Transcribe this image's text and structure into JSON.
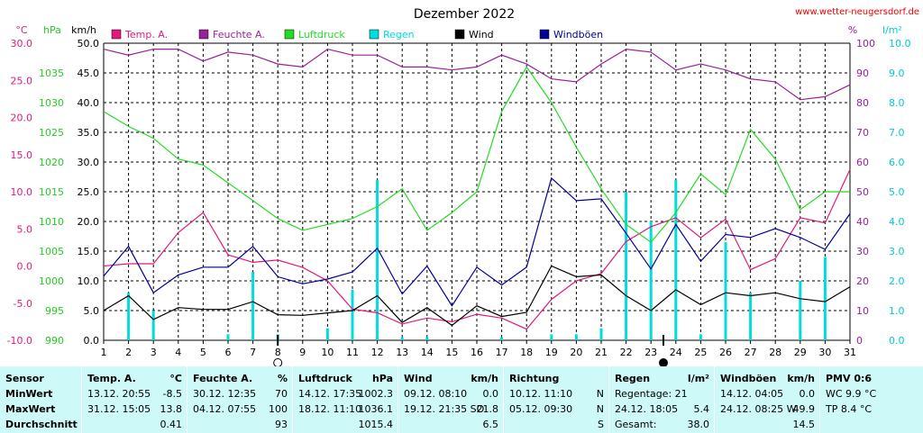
{
  "header": {
    "title": "Dezember 2022",
    "site": "www.wetter-neugersdorf.de"
  },
  "chart_data": {
    "type": "line",
    "title": "Dezember 2022",
    "x": [
      1,
      2,
      3,
      4,
      5,
      6,
      7,
      8,
      9,
      10,
      11,
      12,
      13,
      14,
      15,
      16,
      17,
      18,
      19,
      20,
      21,
      22,
      23,
      24,
      25,
      26,
      27,
      28,
      29,
      30,
      31
    ],
    "xlim": [
      1,
      31
    ],
    "axes": {
      "temp": {
        "unit": "°C",
        "range": [
          -10,
          30
        ],
        "ticks": [
          "-10.0",
          "-5.0",
          "0.0",
          "5.0",
          "10.0",
          "15.0",
          "20.0",
          "25.0",
          "30.0"
        ]
      },
      "pressure": {
        "unit": "hPa",
        "range": [
          990,
          1040
        ],
        "ticks": [
          "990",
          "995",
          "1000",
          "1005",
          "1010",
          "1015",
          "1020",
          "1025",
          "1030",
          "1035"
        ]
      },
      "wind": {
        "unit": "km/h",
        "range": [
          0,
          50
        ],
        "ticks": [
          "0.0",
          "5.0",
          "10.0",
          "15.0",
          "20.0",
          "25.0",
          "30.0",
          "35.0",
          "40.0",
          "45.0",
          "50.0"
        ]
      },
      "humidity": {
        "unit": "%",
        "range": [
          0,
          100
        ],
        "ticks": [
          "0",
          "10",
          "20",
          "30",
          "40",
          "50",
          "60",
          "70",
          "80",
          "90",
          "100"
        ]
      },
      "rain": {
        "unit": "l/m²",
        "range": [
          0,
          10
        ],
        "ticks": [
          "0.0",
          "1.0",
          "2.0",
          "3.0",
          "4.0",
          "5.0",
          "6.0",
          "7.0",
          "8.0",
          "9.0",
          "10.0"
        ]
      }
    },
    "grid": true,
    "legend_position": "top",
    "moon_phases": [
      {
        "day": 8,
        "phase": "full"
      },
      {
        "day": 23.5,
        "phase": "new"
      }
    ],
    "series": [
      {
        "name": "Temp. A.",
        "axis": "temp",
        "color": "#e0197d",
        "kind": "line",
        "values": [
          0.0,
          0.3,
          0.3,
          4.5,
          7.2,
          1.5,
          0.5,
          0.8,
          -0.2,
          -2.0,
          -5.8,
          -6.3,
          -7.8,
          -7.0,
          -7.5,
          -6.5,
          -7.0,
          -8.5,
          -4.5,
          -2.0,
          -1.0,
          3.3,
          5.3,
          6.5,
          3.8,
          6.3,
          -0.5,
          1.0,
          6.5,
          5.8,
          13.0
        ]
      },
      {
        "name": "Feuchte A.",
        "axis": "humidity",
        "color": "#9b1f9b",
        "kind": "line",
        "values": [
          98,
          96,
          98,
          98,
          94,
          97,
          96,
          93,
          92,
          98,
          96,
          96,
          92,
          92,
          91,
          92,
          96,
          93,
          88,
          87,
          93,
          98,
          97,
          91,
          93,
          91,
          88,
          87,
          81,
          82,
          86
        ]
      },
      {
        "name": "Luftdruck",
        "axis": "pressure",
        "color": "#22dd22",
        "kind": "line",
        "values": [
          1028.5,
          1026,
          1024,
          1020.5,
          1019.5,
          1016.5,
          1013.5,
          1010.5,
          1008.5,
          1009.5,
          1010.5,
          1012.5,
          1015.5,
          1008.5,
          1011.5,
          1015,
          1028.5,
          1036,
          1030,
          1022.5,
          1015.5,
          1009.5,
          1006.5,
          1011.5,
          1018,
          1014.5,
          1025.5,
          1020.5,
          1012,
          1015,
          1015
        ]
      },
      {
        "name": "Regen",
        "axis": "rain",
        "color": "#00dddd",
        "kind": "bar",
        "values": [
          0,
          1.6,
          1.0,
          0,
          0,
          0.2,
          2.3,
          0.2,
          0,
          0.4,
          1.7,
          5.4,
          0.1,
          0.1,
          0,
          0,
          0.1,
          0,
          0.2,
          0.2,
          0.4,
          5.0,
          4.0,
          5.4,
          0.2,
          3.3,
          1.6,
          0,
          2.0,
          2.8,
          0
        ]
      },
      {
        "name": "Wind",
        "axis": "wind",
        "color": "#000000",
        "kind": "line",
        "values": [
          5.0,
          7.5,
          3.5,
          5.5,
          5.2,
          5.2,
          6.5,
          4.3,
          4.2,
          4.6,
          5.0,
          7.5,
          3.0,
          5.5,
          2.5,
          5.8,
          4.0,
          4.7,
          12.5,
          10.7,
          11.0,
          7.5,
          5.0,
          8.5,
          6.0,
          8.0,
          7.5,
          8.0,
          7.0,
          6.5,
          9.0
        ]
      },
      {
        "name": "Windböen",
        "axis": "wind",
        "color": "#000099",
        "kind": "line",
        "values": [
          10.8,
          15.8,
          8.0,
          11.0,
          12.3,
          12.3,
          15.8,
          10.7,
          9.5,
          10.3,
          11.5,
          15.5,
          7.8,
          12.5,
          5.8,
          12.3,
          9.3,
          12.3,
          27.3,
          23.5,
          23.8,
          18.0,
          12.0,
          19.5,
          13.3,
          17.8,
          17.3,
          18.8,
          17.3,
          15.3,
          21.3
        ]
      }
    ]
  },
  "stats": {
    "sensor": {
      "title": "Sensor",
      "rows": [
        "MinWert",
        "MaxWert",
        "Durchschnitt"
      ]
    },
    "temp": {
      "title": "Temp. A.",
      "unit": "°C",
      "rows": [
        {
          "time": "13.12.  20:55",
          "value": "-8.5"
        },
        {
          "time": "31.12.  15:05",
          "value": "13.8"
        },
        {
          "time": "",
          "value": "0.41"
        }
      ]
    },
    "feuchte": {
      "title": "Feuchte A.",
      "unit": "%",
      "rows": [
        {
          "time": "30.12.  12:35",
          "value": "70"
        },
        {
          "time": "04.12.  07:55",
          "value": "100"
        },
        {
          "time": "",
          "value": "93"
        }
      ]
    },
    "luftdruck": {
      "title": "Luftdruck",
      "unit": "hPa",
      "rows": [
        {
          "time": "14.12.  17:35",
          "value": "1002.3"
        },
        {
          "time": "18.12.  11:10",
          "value": "1036.1"
        },
        {
          "time": "",
          "value": "1015.4"
        }
      ]
    },
    "wind": {
      "title": "Wind",
      "unit": "km/h",
      "rows": [
        {
          "time": "09.12.  08:10",
          "value": "0.0"
        },
        {
          "time": "19.12.  21:35 SO",
          "value": "21.8"
        },
        {
          "time": "",
          "value": "6.5"
        }
      ]
    },
    "richtung": {
      "title": "Richtung",
      "rows": [
        {
          "time": "10.12.  11:10",
          "value": "N"
        },
        {
          "time": "05.12.  09:30",
          "value": "N"
        },
        {
          "time": "",
          "value": "S"
        }
      ]
    },
    "regen": {
      "title": "Regen",
      "unit": "l/m²",
      "rows": [
        {
          "time": "Regentage: 21",
          "value": ""
        },
        {
          "time": "24.12.  18:05",
          "value": "5.4"
        },
        {
          "time": "Gesamt:",
          "value": "38.0"
        }
      ]
    },
    "windboeen": {
      "title": "Windböen",
      "unit": "km/h",
      "rows": [
        {
          "time": "14.12.  04:05",
          "value": "0.0"
        },
        {
          "time": "24.12.  08:25  W",
          "value": "49.9"
        },
        {
          "time": "",
          "value": "14.5"
        }
      ]
    },
    "pmv": {
      "title": "PMV 0:6",
      "rows": [
        {
          "time": "WC 9.9 °C",
          "value": ""
        },
        {
          "time": "TP 8.4 °C",
          "value": ""
        },
        {
          "time": "",
          "value": ""
        }
      ]
    }
  }
}
